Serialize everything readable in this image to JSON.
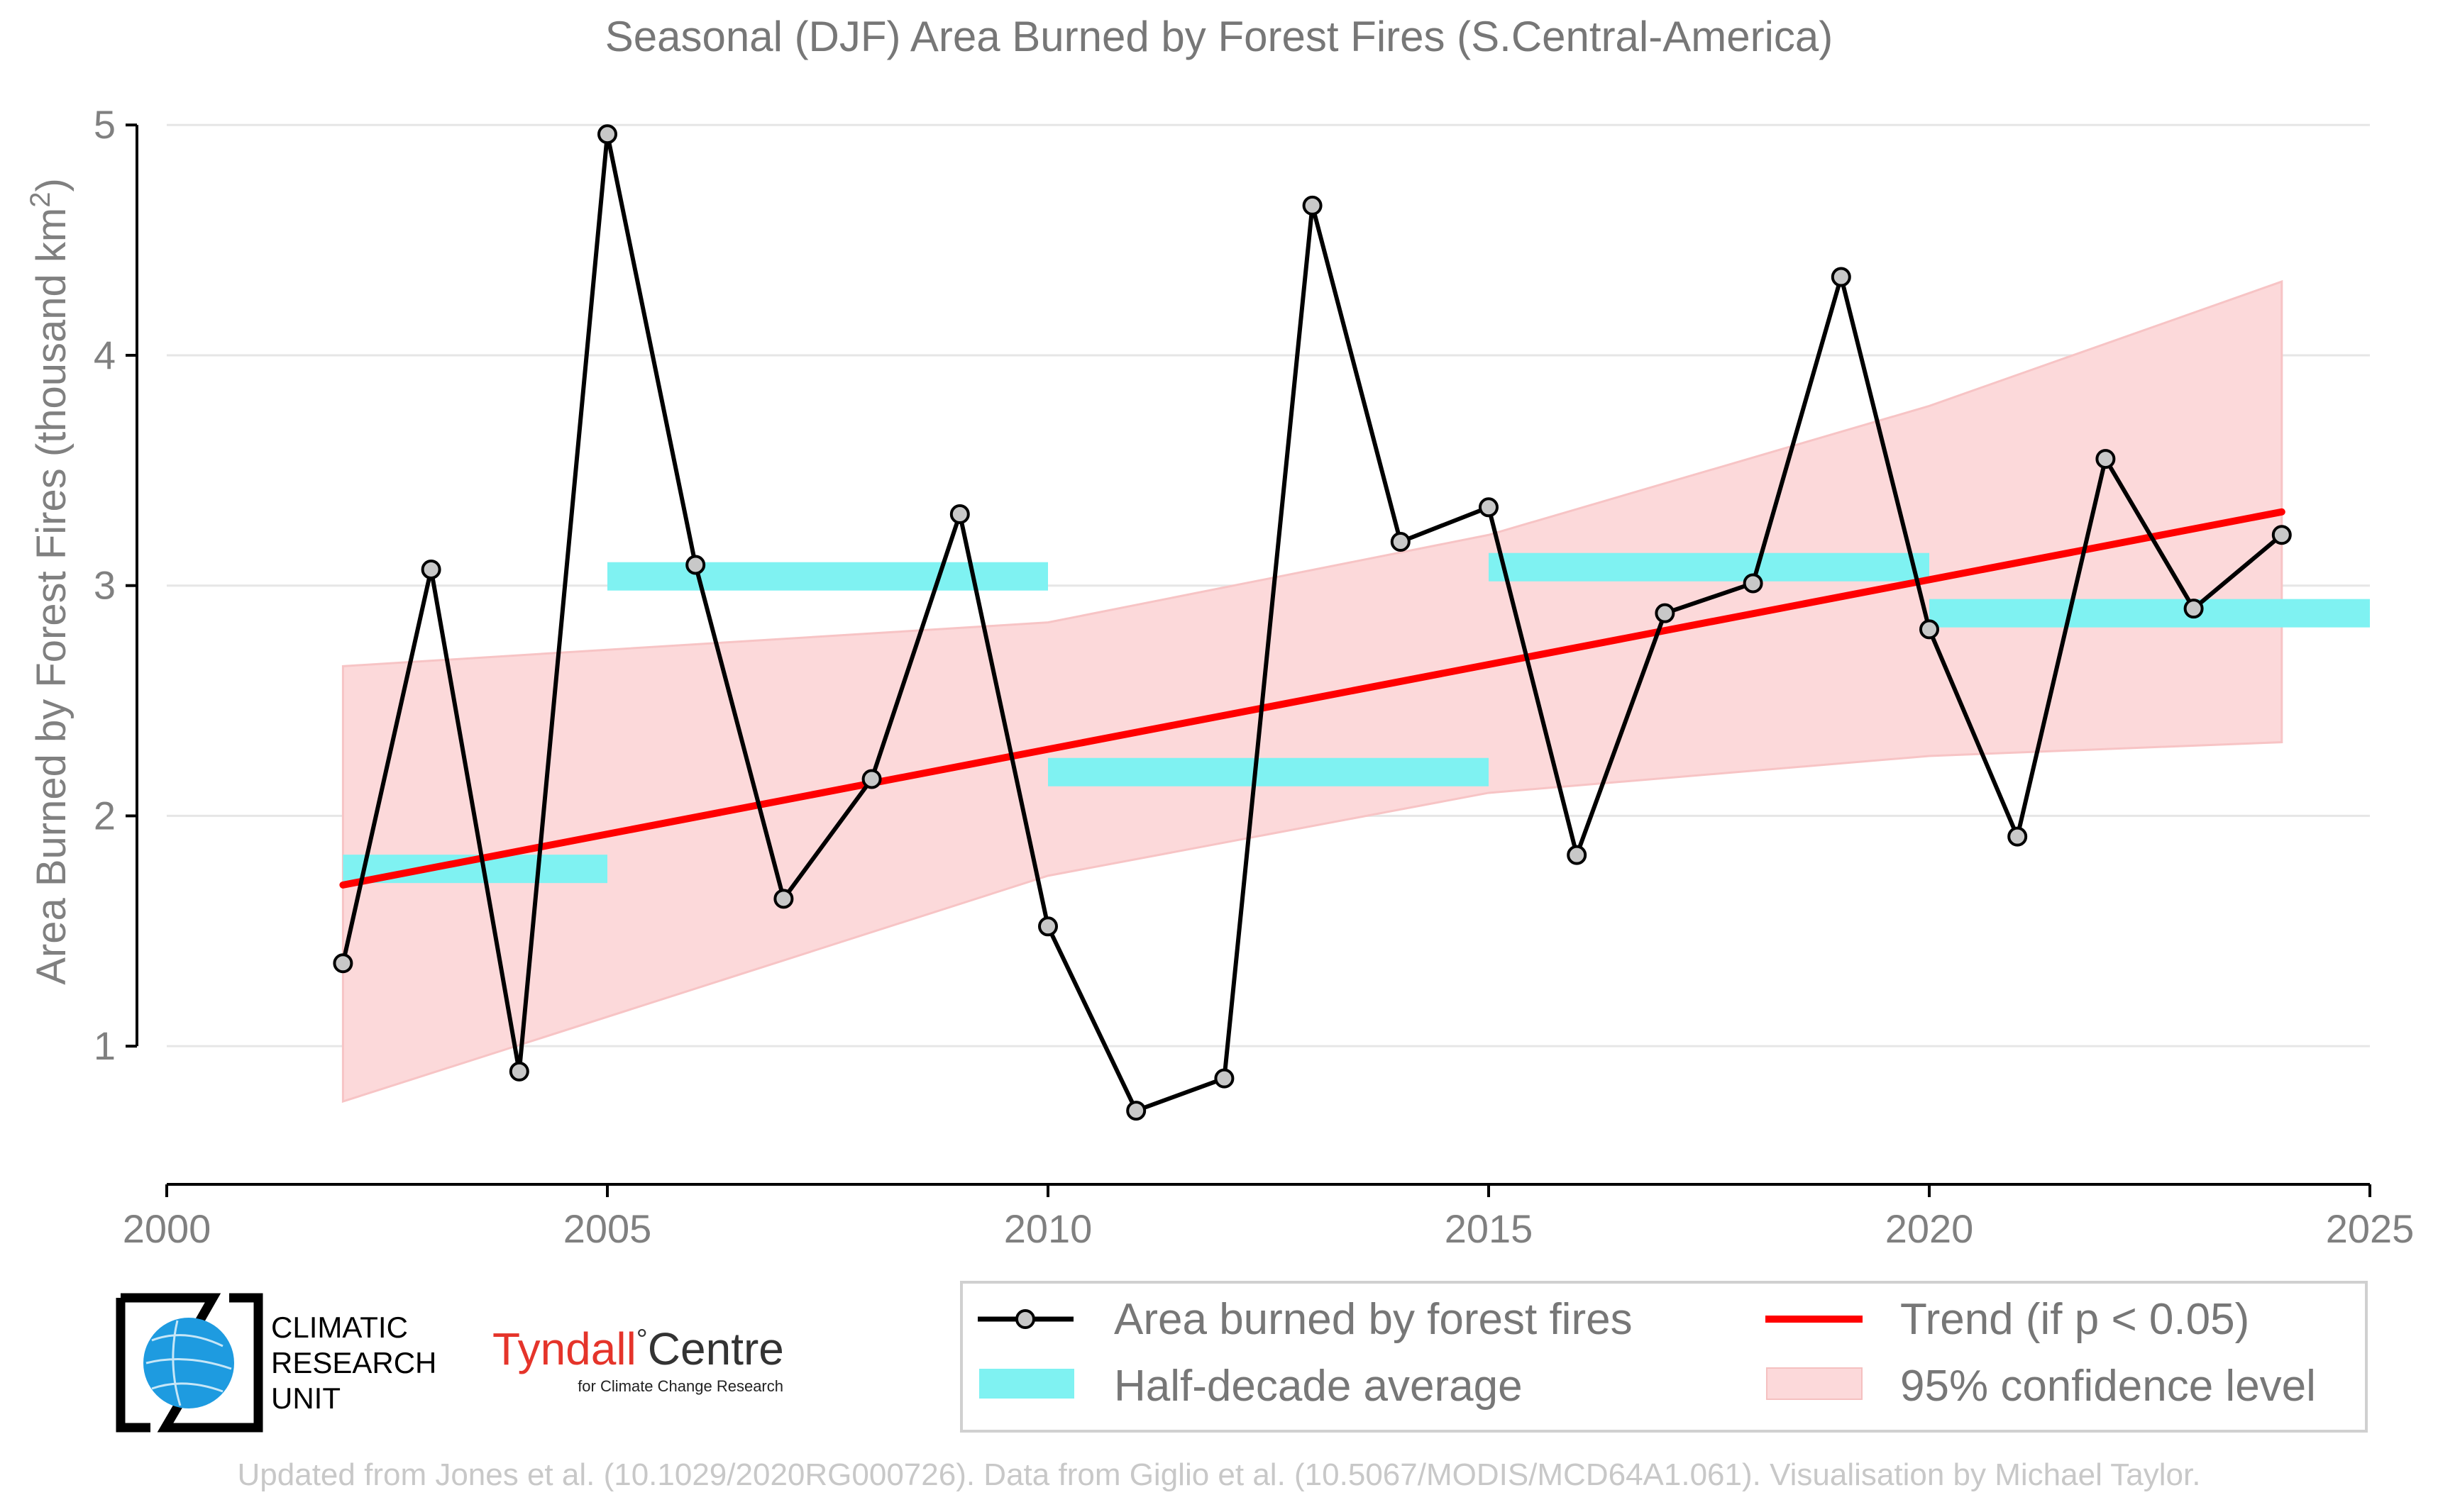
{
  "chart_data": {
    "type": "line",
    "title": "Seasonal (DJF) Area Burned by Forest Fires (S.Central-America)",
    "ylabel": "Area Burned by Forest Fires (thousand km",
    "ylabel_sup": "2",
    "ylabel_close": ")",
    "xlim": [
      2000,
      2025
    ],
    "ylim": [
      0.4,
      5.05
    ],
    "xticks": [
      2000,
      2005,
      2010,
      2015,
      2020,
      2025
    ],
    "yticks": [
      1,
      2,
      3,
      4,
      5
    ],
    "grid": true,
    "legend_position": "bottom-right",
    "series": [
      {
        "name": "Area burned by forest fires",
        "color": "#000000",
        "marker_fill": "#c8c8c8",
        "x": [
          2002,
          2003,
          2004,
          2005,
          2006,
          2007,
          2008,
          2009,
          2010,
          2011,
          2012,
          2013,
          2014,
          2015,
          2016,
          2017,
          2018,
          2019,
          2020,
          2021,
          2022,
          2023,
          2024
        ],
        "y": [
          1.36,
          3.07,
          0.89,
          4.96,
          3.09,
          1.64,
          2.16,
          3.31,
          1.52,
          0.72,
          0.86,
          4.65,
          3.19,
          3.34,
          1.83,
          2.88,
          3.01,
          4.34,
          2.81,
          1.91,
          3.55,
          2.9,
          3.22
        ]
      }
    ],
    "half_decade_average": {
      "name": "Half-decade average",
      "color": "#7ff2f2",
      "segments": [
        {
          "x0": 2002,
          "x1": 2005,
          "y": 1.77
        },
        {
          "x0": 2005,
          "x1": 2010,
          "y": 3.04
        },
        {
          "x0": 2010,
          "x1": 2015,
          "y": 2.19
        },
        {
          "x0": 2015,
          "x1": 2020,
          "y": 3.08
        },
        {
          "x0": 2020,
          "x1": 2025,
          "y": 2.88
        }
      ]
    },
    "trend": {
      "name": "Trend (if p < 0.05)",
      "color": "#ff0000",
      "x0": 2002,
      "y0": 1.7,
      "x1": 2024,
      "y1": 3.32
    },
    "confidence_band": {
      "name": "95% confidence level",
      "color": "#fcd9da",
      "x": [
        2002,
        2010,
        2015,
        2020,
        2024
      ],
      "upper": [
        2.65,
        2.84,
        3.22,
        3.78,
        4.32
      ],
      "lower": [
        0.76,
        1.74,
        2.1,
        2.26,
        2.32
      ]
    }
  },
  "legend": {
    "items": [
      {
        "label": "Area burned by forest fires"
      },
      {
        "label": "Trend (if p < 0.05)"
      },
      {
        "label": "Half-decade average"
      },
      {
        "label": "95% confidence level"
      }
    ]
  },
  "logos": {
    "cru_lines": [
      "CLIMATIC",
      "RESEARCH",
      "UNIT"
    ],
    "tyndall_main": "Tyndall",
    "tyndall_degree": "°",
    "tyndall_centre": "Centre",
    "tyndall_sub": "for Climate Change Research"
  },
  "footer": "Updated from Jones et al. (10.1029/2020RG000726). Data from Giglio et al. (10.5067/MODIS/MCD64A1.061). Visualisation by Michael Taylor."
}
